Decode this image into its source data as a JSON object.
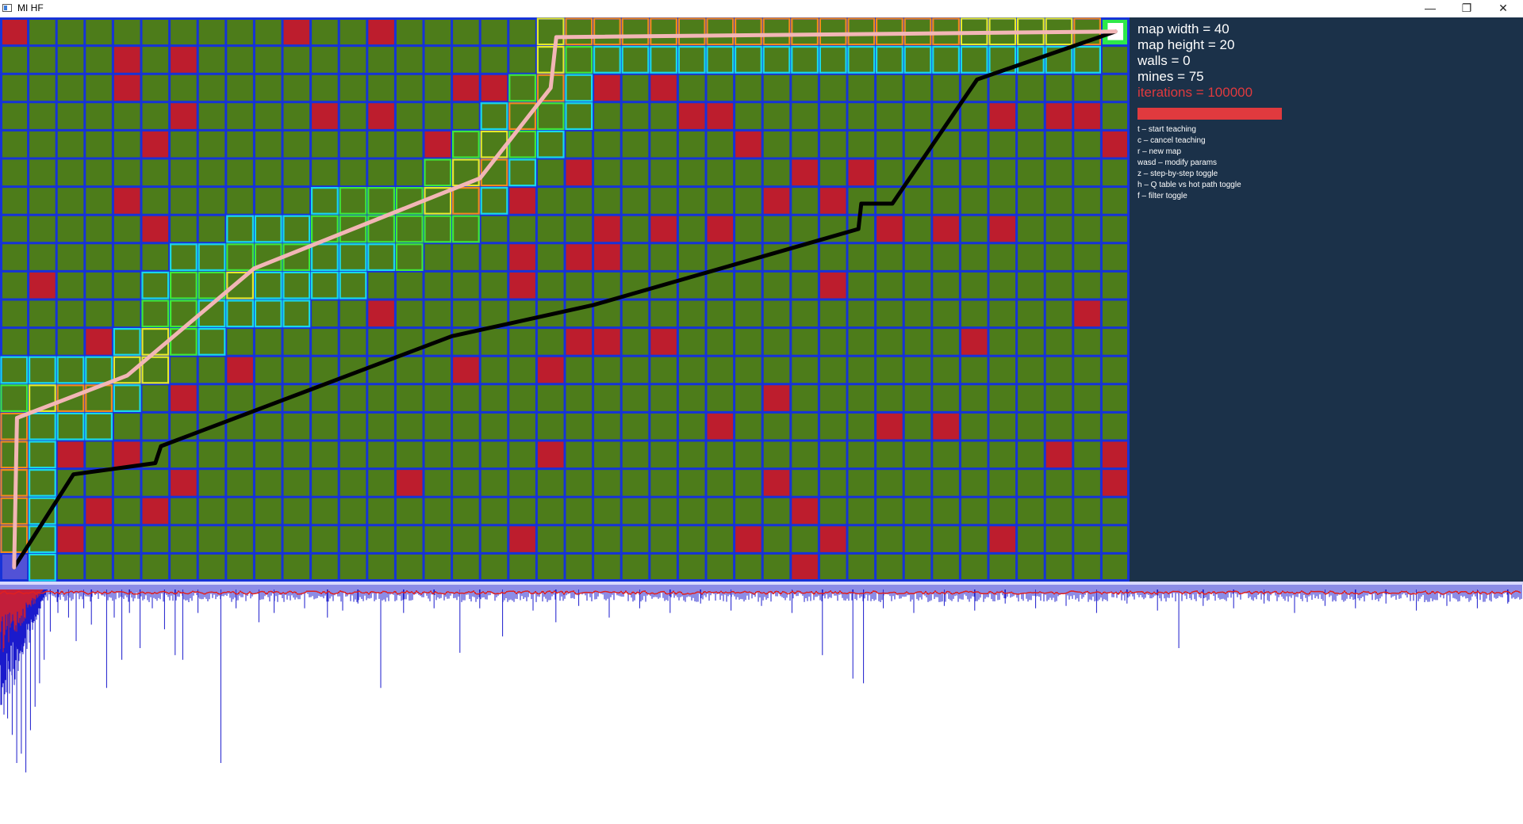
{
  "window": {
    "title": "MI HF",
    "minimize_glyph": "—",
    "maximize_glyph": "❐",
    "close_glyph": "✕"
  },
  "colors": {
    "cell": "#4d7c1a",
    "grid_line": "#1633d8",
    "mine": "#bd1d2d",
    "start": "#5252d6",
    "goal": "#2ee84a",
    "panel_bg": "#1b3149",
    "highlight": "#e03a3e",
    "best_path": "#000000",
    "agent_path": "#f2b6b6",
    "plot_series_a": "#1a1acc",
    "plot_series_b": "#e02020"
  },
  "map": {
    "width": 40,
    "height": 20,
    "start": [
      0,
      19
    ],
    "goal": [
      39,
      0
    ],
    "mines": [
      [
        0,
        0
      ],
      [
        10,
        0
      ],
      [
        13,
        0
      ],
      [
        4,
        1
      ],
      [
        6,
        1
      ],
      [
        4,
        2
      ],
      [
        16,
        2
      ],
      [
        17,
        2
      ],
      [
        21,
        2
      ],
      [
        23,
        2
      ],
      [
        6,
        3
      ],
      [
        11,
        3
      ],
      [
        13,
        3
      ],
      [
        24,
        3
      ],
      [
        25,
        3
      ],
      [
        35,
        3
      ],
      [
        37,
        3
      ],
      [
        38,
        3
      ],
      [
        5,
        4
      ],
      [
        15,
        4
      ],
      [
        26,
        4
      ],
      [
        39,
        4
      ],
      [
        20,
        5
      ],
      [
        28,
        5
      ],
      [
        30,
        5
      ],
      [
        4,
        6
      ],
      [
        18,
        6
      ],
      [
        27,
        6
      ],
      [
        29,
        6
      ],
      [
        5,
        7
      ],
      [
        21,
        7
      ],
      [
        23,
        7
      ],
      [
        25,
        7
      ],
      [
        31,
        7
      ],
      [
        33,
        7
      ],
      [
        35,
        7
      ],
      [
        18,
        8
      ],
      [
        20,
        8
      ],
      [
        21,
        8
      ],
      [
        1,
        9
      ],
      [
        18,
        9
      ],
      [
        29,
        9
      ],
      [
        13,
        10
      ],
      [
        38,
        10
      ],
      [
        3,
        11
      ],
      [
        20,
        11
      ],
      [
        21,
        11
      ],
      [
        23,
        11
      ],
      [
        34,
        11
      ],
      [
        8,
        12
      ],
      [
        16,
        12
      ],
      [
        19,
        12
      ],
      [
        6,
        13
      ],
      [
        27,
        13
      ],
      [
        25,
        14
      ],
      [
        31,
        14
      ],
      [
        33,
        14
      ],
      [
        2,
        15
      ],
      [
        4,
        15
      ],
      [
        19,
        15
      ],
      [
        37,
        15
      ],
      [
        39,
        15
      ],
      [
        6,
        16
      ],
      [
        14,
        16
      ],
      [
        27,
        16
      ],
      [
        39,
        16
      ],
      [
        3,
        17
      ],
      [
        5,
        17
      ],
      [
        28,
        17
      ],
      [
        2,
        18
      ],
      [
        18,
        18
      ],
      [
        26,
        18
      ],
      [
        29,
        18
      ],
      [
        35,
        18
      ],
      [
        28,
        19
      ]
    ],
    "heat_cells": [
      [
        19,
        0,
        "yellow"
      ],
      [
        20,
        0,
        "orange"
      ],
      [
        21,
        0,
        "orange"
      ],
      [
        22,
        0,
        "orange"
      ],
      [
        23,
        0,
        "orange"
      ],
      [
        24,
        0,
        "orange"
      ],
      [
        25,
        0,
        "orange"
      ],
      [
        26,
        0,
        "orange"
      ],
      [
        27,
        0,
        "orange"
      ],
      [
        28,
        0,
        "orange"
      ],
      [
        29,
        0,
        "orange"
      ],
      [
        30,
        0,
        "orange"
      ],
      [
        31,
        0,
        "orange"
      ],
      [
        32,
        0,
        "orange"
      ],
      [
        33,
        0,
        "orange"
      ],
      [
        34,
        0,
        "yellow"
      ],
      [
        35,
        0,
        "yellow"
      ],
      [
        36,
        0,
        "yellow"
      ],
      [
        37,
        0,
        "yellow"
      ],
      [
        38,
        0,
        "orange"
      ],
      [
        19,
        1,
        "yellow"
      ],
      [
        20,
        1,
        "green"
      ],
      [
        21,
        1,
        "cyan"
      ],
      [
        22,
        1,
        "cyan"
      ],
      [
        23,
        1,
        "cyan"
      ],
      [
        24,
        1,
        "cyan"
      ],
      [
        25,
        1,
        "cyan"
      ],
      [
        26,
        1,
        "cyan"
      ],
      [
        27,
        1,
        "cyan"
      ],
      [
        28,
        1,
        "cyan"
      ],
      [
        29,
        1,
        "cyan"
      ],
      [
        30,
        1,
        "cyan"
      ],
      [
        31,
        1,
        "cyan"
      ],
      [
        32,
        1,
        "cyan"
      ],
      [
        33,
        1,
        "cyan"
      ],
      [
        34,
        1,
        "cyan"
      ],
      [
        35,
        1,
        "cyan"
      ],
      [
        36,
        1,
        "cyan"
      ],
      [
        37,
        1,
        "cyan"
      ],
      [
        38,
        1,
        "cyan"
      ],
      [
        18,
        2,
        "green"
      ],
      [
        19,
        2,
        "orange"
      ],
      [
        20,
        2,
        "cyan"
      ],
      [
        17,
        3,
        "cyan"
      ],
      [
        18,
        3,
        "orange"
      ],
      [
        19,
        3,
        "green"
      ],
      [
        20,
        3,
        "cyan"
      ],
      [
        16,
        4,
        "green"
      ],
      [
        17,
        4,
        "yellow"
      ],
      [
        18,
        4,
        "green"
      ],
      [
        19,
        4,
        "cyan"
      ],
      [
        15,
        5,
        "green"
      ],
      [
        16,
        5,
        "yellow"
      ],
      [
        17,
        5,
        "orange"
      ],
      [
        18,
        5,
        "cyan"
      ],
      [
        11,
        6,
        "cyan"
      ],
      [
        12,
        6,
        "green"
      ],
      [
        13,
        6,
        "green"
      ],
      [
        14,
        6,
        "green"
      ],
      [
        15,
        6,
        "yellow"
      ],
      [
        16,
        6,
        "orange"
      ],
      [
        17,
        6,
        "cyan"
      ],
      [
        8,
        7,
        "cyan"
      ],
      [
        9,
        7,
        "cyan"
      ],
      [
        10,
        7,
        "cyan"
      ],
      [
        11,
        7,
        "green"
      ],
      [
        12,
        7,
        "green"
      ],
      [
        13,
        7,
        "green"
      ],
      [
        14,
        7,
        "green"
      ],
      [
        15,
        7,
        "green"
      ],
      [
        16,
        7,
        "green"
      ],
      [
        6,
        8,
        "cyan"
      ],
      [
        7,
        8,
        "cyan"
      ],
      [
        8,
        8,
        "green"
      ],
      [
        9,
        8,
        "green"
      ],
      [
        10,
        8,
        "green"
      ],
      [
        11,
        8,
        "cyan"
      ],
      [
        12,
        8,
        "cyan"
      ],
      [
        13,
        8,
        "cyan"
      ],
      [
        14,
        8,
        "green"
      ],
      [
        5,
        9,
        "cyan"
      ],
      [
        6,
        9,
        "green"
      ],
      [
        7,
        9,
        "green"
      ],
      [
        8,
        9,
        "yellow"
      ],
      [
        9,
        9,
        "cyan"
      ],
      [
        10,
        9,
        "cyan"
      ],
      [
        11,
        9,
        "cyan"
      ],
      [
        12,
        9,
        "cyan"
      ],
      [
        5,
        10,
        "green"
      ],
      [
        6,
        10,
        "green"
      ],
      [
        7,
        10,
        "cyan"
      ],
      [
        8,
        10,
        "cyan"
      ],
      [
        9,
        10,
        "cyan"
      ],
      [
        10,
        10,
        "cyan"
      ],
      [
        4,
        11,
        "cyan"
      ],
      [
        5,
        11,
        "yellow"
      ],
      [
        6,
        11,
        "green"
      ],
      [
        7,
        11,
        "cyan"
      ],
      [
        0,
        12,
        "cyan"
      ],
      [
        1,
        12,
        "cyan"
      ],
      [
        2,
        12,
        "cyan"
      ],
      [
        3,
        12,
        "cyan"
      ],
      [
        4,
        12,
        "yellow"
      ],
      [
        5,
        12,
        "yellow"
      ],
      [
        0,
        13,
        "green"
      ],
      [
        1,
        13,
        "yellow"
      ],
      [
        2,
        13,
        "orange"
      ],
      [
        3,
        13,
        "orange"
      ],
      [
        4,
        13,
        "cyan"
      ],
      [
        0,
        14,
        "orange"
      ],
      [
        1,
        14,
        "cyan"
      ],
      [
        2,
        14,
        "cyan"
      ],
      [
        3,
        14,
        "cyan"
      ],
      [
        0,
        15,
        "orange"
      ],
      [
        1,
        15,
        "cyan"
      ],
      [
        0,
        16,
        "orange"
      ],
      [
        1,
        16,
        "cyan"
      ],
      [
        0,
        17,
        "orange"
      ],
      [
        1,
        17,
        "cyan"
      ],
      [
        0,
        18,
        "orange"
      ],
      [
        1,
        18,
        "cyan"
      ],
      [
        1,
        19,
        "cyan"
      ]
    ],
    "best_path": [
      [
        0.5,
        19.5
      ],
      [
        2.6,
        16.2
      ],
      [
        5.5,
        15.8
      ],
      [
        5.7,
        15.2
      ],
      [
        16.0,
        11.3
      ],
      [
        21.0,
        10.2
      ],
      [
        30.4,
        7.5
      ],
      [
        30.5,
        6.6
      ],
      [
        31.6,
        6.6
      ],
      [
        34.6,
        2.2
      ],
      [
        39.5,
        0.5
      ]
    ],
    "agent_path": [
      [
        0.5,
        19.5
      ],
      [
        0.6,
        14.2
      ],
      [
        4.5,
        12.7
      ],
      [
        9.0,
        8.9
      ],
      [
        17.0,
        5.7
      ],
      [
        19.5,
        2.5
      ],
      [
        19.7,
        0.7
      ],
      [
        39.5,
        0.5
      ]
    ]
  },
  "panel": {
    "width_line": "map width = 40",
    "height_line": "map height = 20",
    "walls_line": "walls = 0",
    "mines_line": "mines = 75",
    "iterations_line": "iterations = 100000",
    "progress": 1.0,
    "help": [
      "t – start teaching",
      "c – cancel teaching",
      "r – new map",
      "wasd – modify params",
      "z – step-by-step toggle",
      "h – Q table vs hot path toggle",
      "f – filter toggle"
    ]
  },
  "plot": {
    "spikes": [
      [
        0.002,
        0.32
      ],
      [
        0.005,
        0.55
      ],
      [
        0.008,
        0.62
      ],
      [
        0.011,
        0.74
      ],
      [
        0.014,
        0.7
      ],
      [
        0.017,
        0.78
      ],
      [
        0.02,
        0.6
      ],
      [
        0.023,
        0.5
      ],
      [
        0.026,
        0.4
      ],
      [
        0.029,
        0.3
      ],
      [
        0.033,
        0.18
      ],
      [
        0.038,
        0.1
      ],
      [
        0.045,
        0.12
      ],
      [
        0.05,
        0.22
      ],
      [
        0.055,
        0.08
      ],
      [
        0.06,
        0.15
      ],
      [
        0.07,
        0.42
      ],
      [
        0.075,
        0.12
      ],
      [
        0.08,
        0.3
      ],
      [
        0.085,
        0.1
      ],
      [
        0.092,
        0.25
      ],
      [
        0.1,
        0.08
      ],
      [
        0.108,
        0.17
      ],
      [
        0.115,
        0.28
      ],
      [
        0.12,
        0.3
      ],
      [
        0.13,
        0.1
      ],
      [
        0.145,
        0.74
      ],
      [
        0.155,
        0.08
      ],
      [
        0.17,
        0.14
      ],
      [
        0.18,
        0.1
      ],
      [
        0.2,
        0.08
      ],
      [
        0.215,
        0.12
      ],
      [
        0.225,
        0.09
      ],
      [
        0.235,
        0.06
      ],
      [
        0.25,
        0.42
      ],
      [
        0.265,
        0.1
      ],
      [
        0.285,
        0.08
      ],
      [
        0.302,
        0.27
      ],
      [
        0.315,
        0.08
      ],
      [
        0.33,
        0.2
      ],
      [
        0.35,
        0.09
      ],
      [
        0.365,
        0.14
      ],
      [
        0.38,
        0.07
      ],
      [
        0.4,
        0.12
      ],
      [
        0.42,
        0.08
      ],
      [
        0.44,
        0.1
      ],
      [
        0.46,
        0.06
      ],
      [
        0.48,
        0.09
      ],
      [
        0.5,
        0.07
      ],
      [
        0.52,
        0.1
      ],
      [
        0.54,
        0.28
      ],
      [
        0.56,
        0.38
      ],
      [
        0.567,
        0.4
      ],
      [
        0.58,
        0.08
      ],
      [
        0.6,
        0.1
      ],
      [
        0.62,
        0.07
      ],
      [
        0.64,
        0.09
      ],
      [
        0.66,
        0.06
      ],
      [
        0.68,
        0.08
      ],
      [
        0.7,
        0.07
      ],
      [
        0.72,
        0.1
      ],
      [
        0.74,
        0.06
      ],
      [
        0.76,
        0.09
      ],
      [
        0.774,
        0.25
      ],
      [
        0.79,
        0.07
      ],
      [
        0.81,
        0.08
      ],
      [
        0.83,
        0.06
      ],
      [
        0.85,
        0.1
      ],
      [
        0.87,
        0.07
      ],
      [
        0.89,
        0.08
      ],
      [
        0.91,
        0.06
      ],
      [
        0.93,
        0.09
      ],
      [
        0.95,
        0.07
      ],
      [
        0.97,
        0.08
      ],
      [
        0.99,
        0.06
      ]
    ]
  }
}
